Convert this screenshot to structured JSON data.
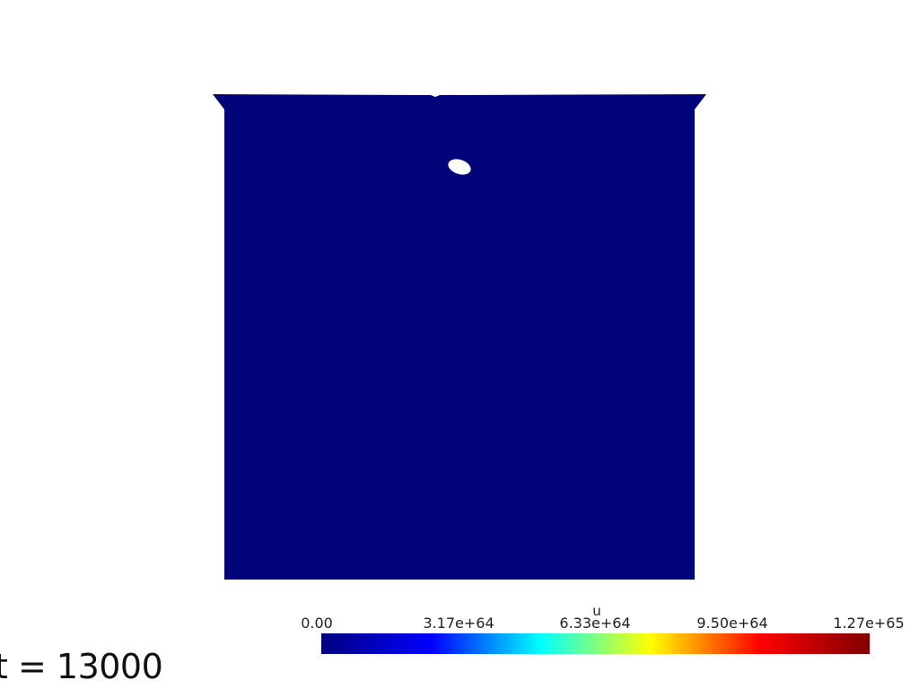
{
  "scene": {
    "field_color": "#020479",
    "hole_color": "#ffffff"
  },
  "colorbar": {
    "title": "u",
    "ticks": [
      "0.00",
      "3.17e+64",
      "6.33e+64",
      "9.50e+64",
      "1.27e+65"
    ],
    "colormap": "jet",
    "colors": [
      "#00007f",
      "#0000ff",
      "#00ffff",
      "#ffff00",
      "#ff0000",
      "#7f0000"
    ]
  },
  "time": {
    "label": "t = 13000"
  }
}
